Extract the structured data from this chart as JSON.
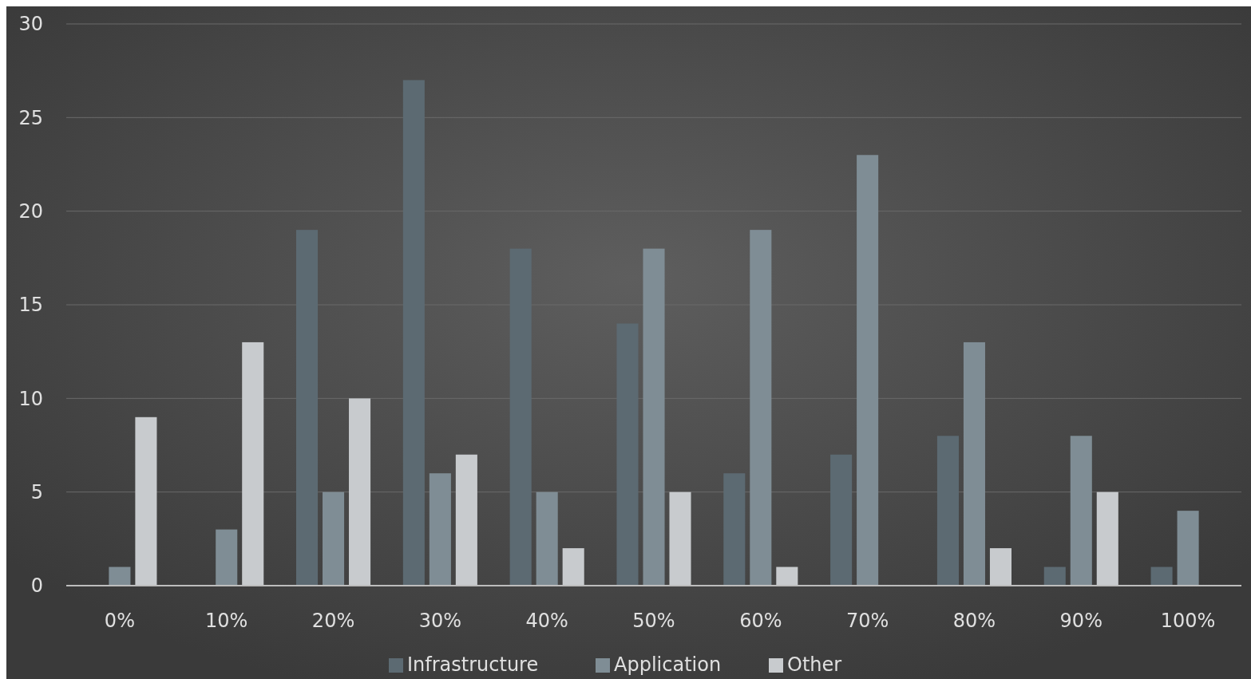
{
  "chart_data": {
    "type": "bar",
    "categories": [
      "0%",
      "10%",
      "20%",
      "30%",
      "40%",
      "50%",
      "60%",
      "70%",
      "80%",
      "90%",
      "100%"
    ],
    "series": [
      {
        "name": "Infrastructure",
        "color": "#5c6a72",
        "values": [
          0,
          0,
          19,
          27,
          18,
          14,
          6,
          7,
          8,
          1,
          1
        ]
      },
      {
        "name": "Application",
        "color": "#7f8d95",
        "values": [
          1,
          3,
          5,
          6,
          5,
          18,
          19,
          23,
          13,
          8,
          4
        ]
      },
      {
        "name": "Other",
        "color": "#c8cbce",
        "values": [
          9,
          13,
          10,
          7,
          2,
          5,
          1,
          0,
          2,
          5,
          0
        ]
      }
    ],
    "ylim": [
      0,
      30
    ],
    "yticks": [
      0,
      5,
      10,
      15,
      20,
      25,
      30
    ],
    "grid": "y",
    "legend": "bottom"
  }
}
